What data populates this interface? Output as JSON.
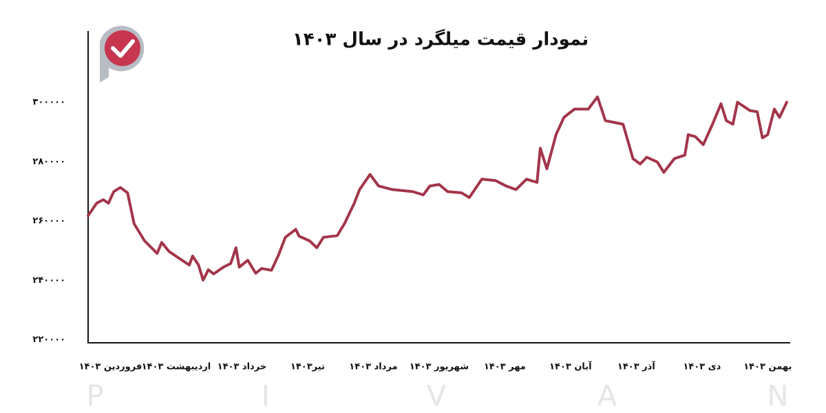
{
  "chart_data": {
    "type": "line",
    "title": "نمودار قیمت میلگرد در سال ۱۴۰۳",
    "x": [
      0.66,
      0.79,
      0.89,
      0.97,
      1.05,
      1.15,
      1.26,
      1.36,
      1.52,
      1.71,
      1.78,
      1.89,
      2.04,
      2.2,
      2.25,
      2.34,
      2.41,
      2.49,
      2.57,
      2.72,
      2.83,
      2.91,
      2.96,
      3.09,
      3.21,
      3.3,
      3.45,
      3.56,
      3.66,
      3.82,
      3.87,
      4.03,
      4.14,
      4.24,
      4.45,
      4.56,
      4.71,
      4.79,
      4.95,
      5.08,
      5.29,
      5.6,
      5.76,
      5.86,
      6.0,
      6.13,
      6.34,
      6.46,
      6.65,
      6.86,
      7.02,
      7.17,
      7.33,
      7.49,
      7.54,
      7.64,
      7.78,
      7.9,
      8.06,
      8.27,
      8.41,
      8.53,
      8.8,
      8.95,
      9.06,
      9.16,
      9.32,
      9.42,
      9.58,
      9.74,
      9.79,
      9.9,
      10.02,
      10.16,
      10.29,
      10.37,
      10.47,
      10.54,
      10.73,
      10.84,
      10.92,
      11.0,
      11.1,
      11.18,
      11.29
    ],
    "series": [
      {
        "color": "#a3354a",
        "values": [
          261800,
          266000,
          267200,
          266000,
          269900,
          271300,
          269500,
          259100,
          253300,
          249100,
          252800,
          249800,
          247500,
          245200,
          248200,
          245200,
          240100,
          243600,
          242200,
          244500,
          245700,
          251000,
          244500,
          246800,
          242400,
          244000,
          243400,
          248700,
          254500,
          257200,
          254900,
          253300,
          251000,
          254500,
          255100,
          259100,
          266000,
          270600,
          275700,
          271800,
          270600,
          269900,
          268800,
          271800,
          272300,
          269900,
          269500,
          267900,
          274100,
          273600,
          271800,
          270600,
          274100,
          273000,
          284500,
          277600,
          289100,
          294900,
          297700,
          297700,
          301800,
          293800,
          292600,
          281000,
          279200,
          281500,
          279900,
          276400,
          281000,
          282200,
          289100,
          288400,
          285700,
          292600,
          299500,
          293800,
          292600,
          300000,
          297200,
          296800,
          288000,
          289100,
          297700,
          294900,
          300000
        ]
      }
    ],
    "xlim": [
      0.66,
      11.29
    ],
    "xticks": [
      {
        "value": 1,
        "label": "فروردین ۱۴۰۳"
      },
      {
        "value": 2,
        "label": "اردیبهشت ۱۴۰۳"
      },
      {
        "value": 3,
        "label": "خرداد ۱۴۰۳"
      },
      {
        "value": 4,
        "label": "تیر۱۴۰۳"
      },
      {
        "value": 5,
        "label": "مرداد ۱۴۰۳"
      },
      {
        "value": 6,
        "label": "شهریور ۱۴۰۳"
      },
      {
        "value": 7,
        "label": "مهر ۱۴۰۳"
      },
      {
        "value": 8,
        "label": "آبان ۱۴۰۳"
      },
      {
        "value": 9,
        "label": "آذر ۱۴۰۳"
      },
      {
        "value": 10,
        "label": "دی ۱۴۰۳"
      },
      {
        "value": 11,
        "label": "بهمن ۱۴۰۳"
      }
    ],
    "ylim": [
      219000,
      324000
    ],
    "yticks": [
      {
        "value": 220000,
        "label": "۲۲۰۰۰۰"
      },
      {
        "value": 240000,
        "label": "۲۴۰۰۰۰"
      },
      {
        "value": 260000,
        "label": "۲۶۰۰۰۰"
      },
      {
        "value": 280000,
        "label": "۲۸۰۰۰۰"
      },
      {
        "value": 300000,
        "label": "۳۰۰۰۰۰"
      }
    ],
    "grid": false,
    "watermark": [
      "P",
      "I",
      "V",
      "A",
      "N"
    ]
  }
}
